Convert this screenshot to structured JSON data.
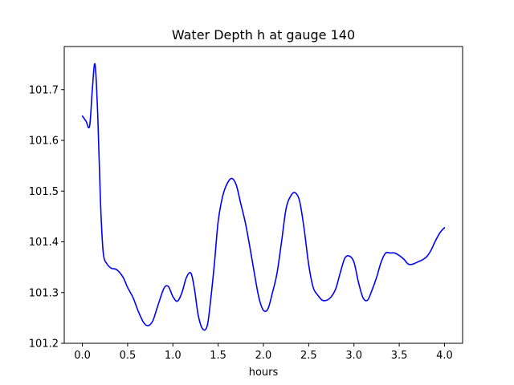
{
  "chart_data": {
    "type": "line",
    "title": "Water Depth h at gauge 140",
    "xlabel": "hours",
    "ylabel": "",
    "xlim": [
      -0.2,
      4.2
    ],
    "ylim": [
      101.2,
      101.785
    ],
    "xticks": [
      0.0,
      0.5,
      1.0,
      1.5,
      2.0,
      2.5,
      3.0,
      3.5,
      4.0
    ],
    "xtick_labels": [
      "0.0",
      "0.5",
      "1.0",
      "1.5",
      "2.0",
      "2.5",
      "3.0",
      "3.5",
      "4.0"
    ],
    "yticks": [
      101.2,
      101.3,
      101.4,
      101.5,
      101.6,
      101.7
    ],
    "ytick_labels": [
      "101.2",
      "101.3",
      "101.4",
      "101.5",
      "101.6",
      "101.7"
    ],
    "grid": false,
    "series": [
      {
        "color": "#0000ff",
        "x": [
          0.0,
          0.04,
          0.08,
          0.11,
          0.14,
          0.17,
          0.2,
          0.23,
          0.27,
          0.32,
          0.38,
          0.45,
          0.5,
          0.56,
          0.62,
          0.68,
          0.73,
          0.78,
          0.83,
          0.9,
          0.95,
          1.0,
          1.05,
          1.1,
          1.15,
          1.2,
          1.24,
          1.28,
          1.33,
          1.38,
          1.42,
          1.46,
          1.5,
          1.55,
          1.6,
          1.65,
          1.7,
          1.75,
          1.8,
          1.85,
          1.9,
          1.95,
          2.0,
          2.05,
          2.1,
          2.15,
          2.2,
          2.25,
          2.3,
          2.35,
          2.4,
          2.45,
          2.5,
          2.55,
          2.6,
          2.65,
          2.7,
          2.75,
          2.8,
          2.85,
          2.9,
          2.95,
          3.0,
          3.05,
          3.1,
          3.15,
          3.2,
          3.25,
          3.3,
          3.35,
          3.4,
          3.45,
          3.5,
          3.55,
          3.6,
          3.65,
          3.7,
          3.75,
          3.8,
          3.85,
          3.9,
          3.95,
          4.0
        ],
        "y": [
          101.648,
          101.638,
          101.628,
          101.7,
          101.75,
          101.65,
          101.48,
          101.38,
          101.357,
          101.348,
          101.345,
          101.33,
          101.31,
          101.29,
          101.262,
          101.24,
          101.235,
          101.245,
          101.272,
          101.308,
          101.312,
          101.292,
          101.283,
          101.3,
          101.33,
          101.338,
          101.305,
          101.255,
          101.228,
          101.235,
          101.29,
          101.36,
          101.44,
          101.49,
          101.515,
          101.525,
          101.512,
          101.475,
          101.438,
          101.39,
          101.338,
          101.29,
          101.265,
          101.268,
          101.3,
          101.338,
          101.4,
          101.465,
          101.49,
          101.497,
          101.48,
          101.425,
          101.355,
          101.31,
          101.295,
          101.285,
          101.285,
          101.292,
          101.308,
          101.34,
          101.368,
          101.372,
          101.36,
          101.32,
          101.29,
          101.285,
          101.305,
          101.33,
          101.36,
          101.378,
          101.378,
          101.378,
          101.373,
          101.366,
          101.356,
          101.356,
          101.36,
          101.364,
          101.37,
          101.383,
          101.402,
          101.418,
          101.428
        ]
      }
    ]
  }
}
